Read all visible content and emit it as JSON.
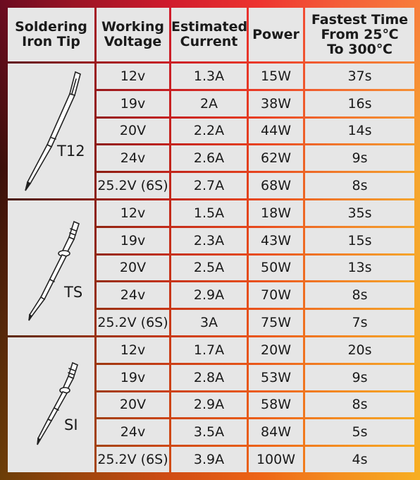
{
  "headers": {
    "tip": [
      "Soldering",
      "Iron Tip"
    ],
    "voltage": [
      "Working",
      "Voltage"
    ],
    "current": [
      "Estimated",
      "Current"
    ],
    "power": [
      "Power"
    ],
    "time": [
      "Fastest Time",
      "From 25℃",
      "To 300℃"
    ]
  },
  "groups": [
    {
      "tip": "T12",
      "icon": "t12-soldering-tip-icon",
      "rows": [
        {
          "voltage": "12v",
          "current": "1.3A",
          "power": "15W",
          "time": "37s"
        },
        {
          "voltage": "19v",
          "current": "2A",
          "power": "38W",
          "time": "16s"
        },
        {
          "voltage": "20V",
          "current": "2.2A",
          "power": "44W",
          "time": "14s"
        },
        {
          "voltage": "24v",
          "current": "2.6A",
          "power": "62W",
          "time": "9s"
        },
        {
          "voltage": "25.2V (6S)",
          "current": "2.7A",
          "power": "68W",
          "time": "8s"
        }
      ]
    },
    {
      "tip": "TS",
      "icon": "ts-soldering-tip-icon",
      "rows": [
        {
          "voltage": "12v",
          "current": "1.5A",
          "power": "18W",
          "time": "35s"
        },
        {
          "voltage": "19v",
          "current": "2.3A",
          "power": "43W",
          "time": "15s"
        },
        {
          "voltage": "20V",
          "current": "2.5A",
          "power": "50W",
          "time": "13s"
        },
        {
          "voltage": "24v",
          "current": "2.9A",
          "power": "70W",
          "time": "8s"
        },
        {
          "voltage": "25.2V (6S)",
          "current": "3A",
          "power": "75W",
          "time": "7s"
        }
      ]
    },
    {
      "tip": "SI",
      "icon": "si-soldering-tip-icon",
      "rows": [
        {
          "voltage": "12v",
          "current": "1.7A",
          "power": "20W",
          "time": "20s"
        },
        {
          "voltage": "19v",
          "current": "2.8A",
          "power": "53W",
          "time": "9s"
        },
        {
          "voltage": "20V",
          "current": "2.9A",
          "power": "58W",
          "time": "8s"
        },
        {
          "voltage": "24v",
          "current": "3.5A",
          "power": "84W",
          "time": "5s"
        },
        {
          "voltage": "25.2V (6S)",
          "current": "3.9A",
          "power": "100W",
          "time": "4s"
        }
      ]
    }
  ]
}
